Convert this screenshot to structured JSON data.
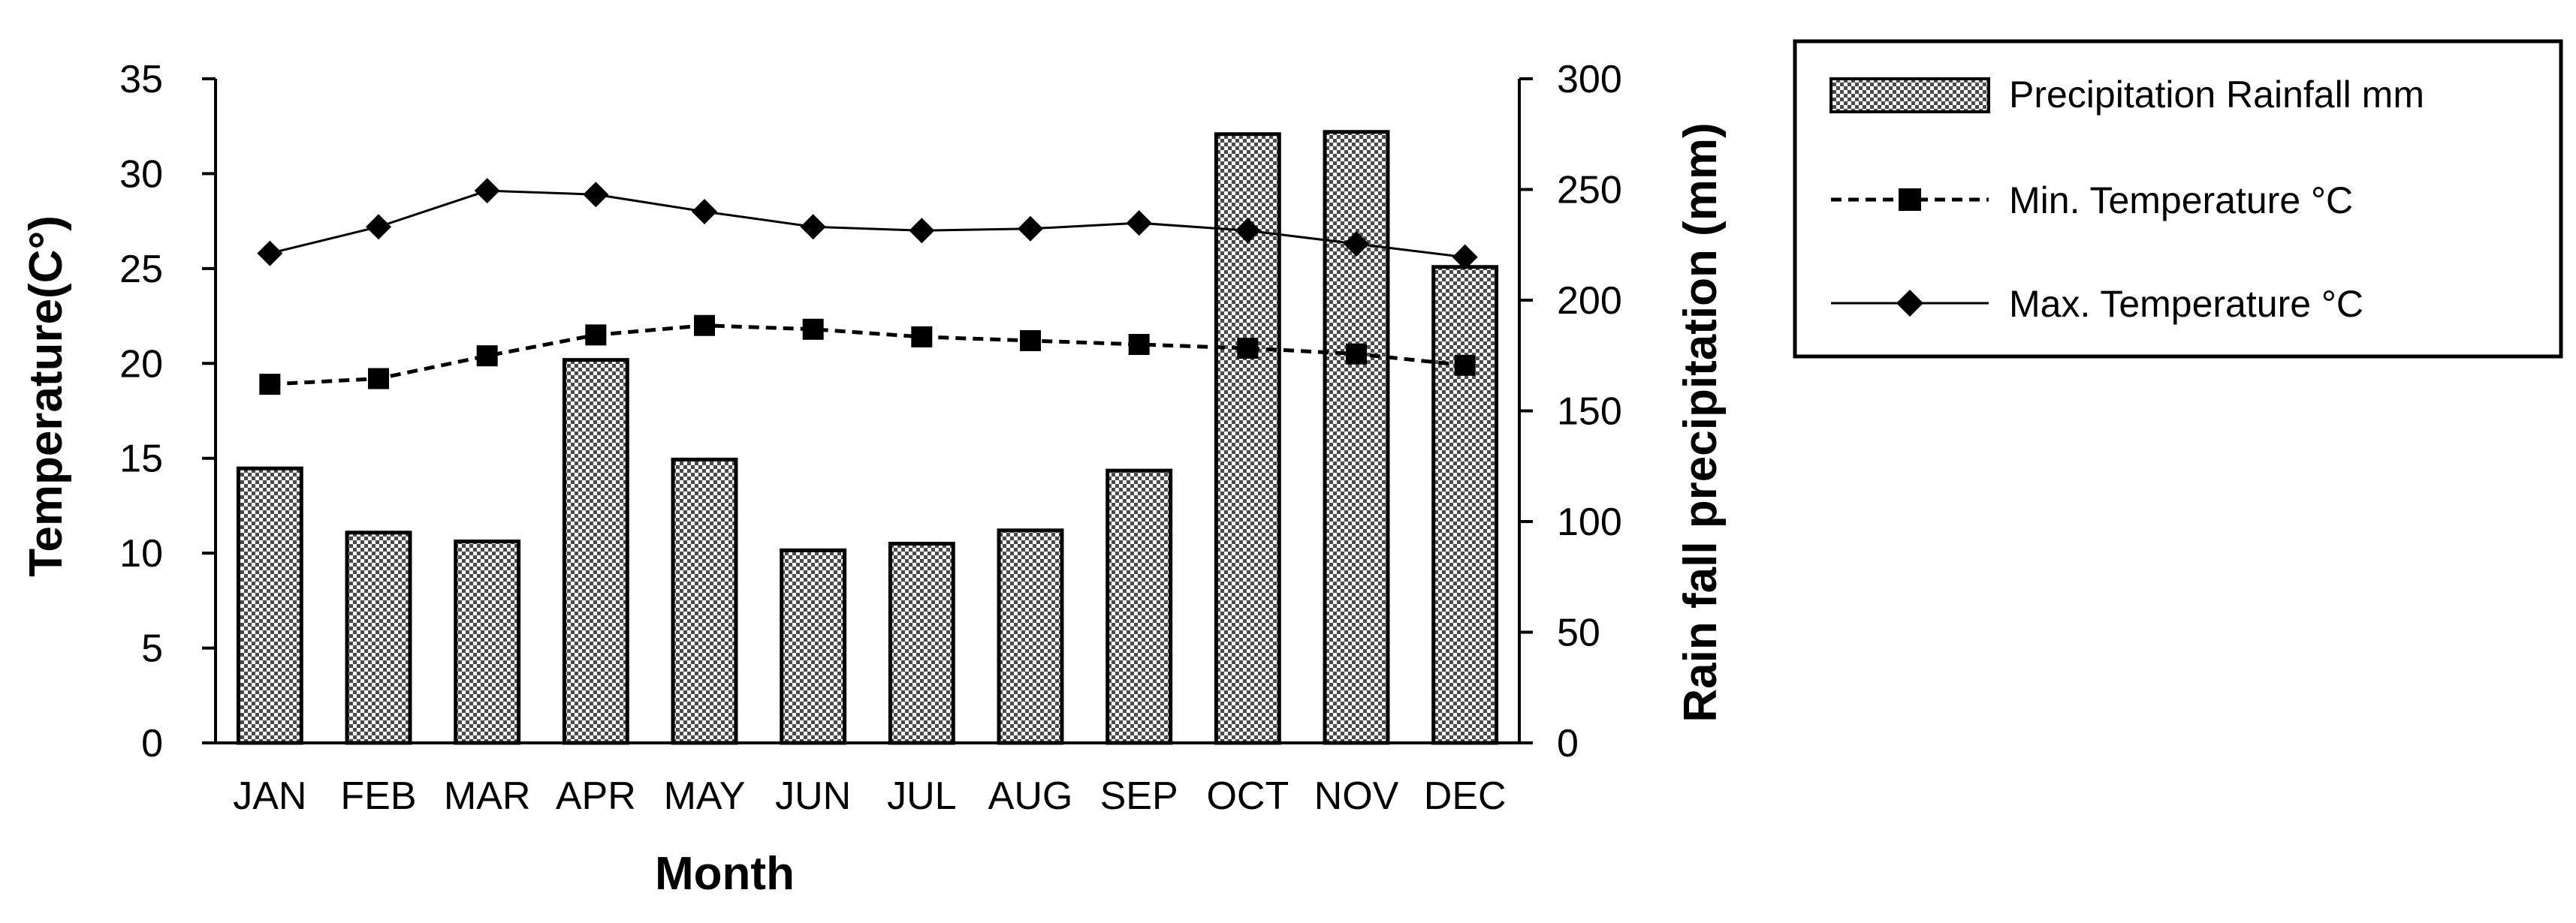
{
  "chart_data": {
    "type": "bar",
    "categories": [
      "JAN",
      "FEB",
      "MAR",
      "APR",
      "MAY",
      "JUN",
      "JUL",
      "AUG",
      "SEP",
      "OCT",
      "NOV",
      "DEC"
    ],
    "series": [
      {
        "name": "Precipitation Rainfall mm",
        "kind": "bar",
        "axis": "right",
        "pattern": "checkered",
        "values": [
          124,
          95,
          91,
          173,
          128,
          87,
          90,
          96,
          123,
          275,
          276,
          215
        ]
      },
      {
        "name": "Min. Temperature °C",
        "kind": "line",
        "axis": "left",
        "line_style": "dashed",
        "marker": "square",
        "values": [
          18.9,
          19.2,
          20.4,
          21.5,
          22.0,
          21.8,
          21.4,
          21.2,
          21.0,
          20.8,
          20.5,
          19.9
        ]
      },
      {
        "name": "Max. Temperature °C",
        "kind": "line",
        "axis": "left",
        "line_style": "solid",
        "marker": "diamond",
        "values": [
          25.8,
          27.2,
          29.1,
          28.9,
          28.0,
          27.2,
          27.0,
          27.1,
          27.4,
          27.0,
          26.3,
          25.6
        ]
      }
    ],
    "xlabel": "Month",
    "ylabel": "Temperature(C°)",
    "y2label": "Rain fall precipitation (mm)",
    "ylim": [
      0,
      35
    ],
    "y2lim": [
      0,
      300
    ],
    "yticks": [
      "0",
      "5",
      "10",
      "15",
      "20",
      "25",
      "30",
      "35"
    ],
    "y2ticks": [
      "0",
      "50",
      "100",
      "150",
      "200",
      "250",
      "300"
    ],
    "grid": false,
    "legend_position": "right"
  }
}
